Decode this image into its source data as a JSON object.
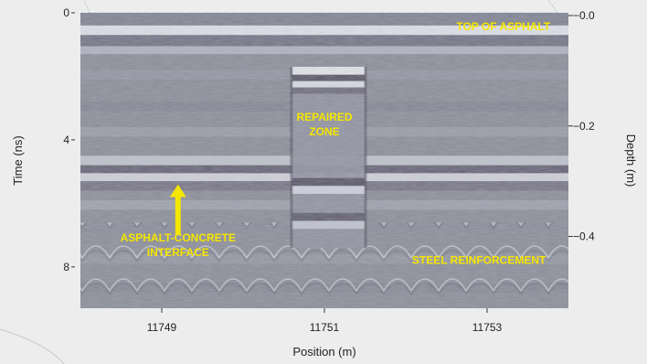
{
  "chart_data": {
    "type": "heatmap",
    "subtype": "ground-penetrating radar radargram (grayscale)",
    "x": {
      "label": "Position (m)",
      "range": [
        11748,
        11754
      ],
      "ticks": [
        11749,
        11751,
        11753
      ]
    },
    "y_left": {
      "label": "Time (ns)",
      "range": [
        0,
        9.3
      ],
      "ticks": [
        0,
        4,
        8
      ],
      "inverted": true
    },
    "y_right": {
      "label": "Depth (m)",
      "range": [
        -0.005,
        0.53
      ],
      "ticks": [
        0.0,
        0.2,
        0.4
      ],
      "tick_labels": [
        "−0.0",
        "−0.2",
        "−0.4"
      ],
      "inverted": true
    },
    "grid": false,
    "legend": "none",
    "colors": {
      "background": "#ededed",
      "annotation": "#f5e600",
      "arrow": "#f5e600",
      "text": "#222222"
    },
    "annotations": [
      {
        "text": [
          "TOP OF ASPHALT"
        ],
        "x": 11753.2,
        "y_ns": 0.55
      },
      {
        "text": [
          "REPAIRED",
          "ZONE"
        ],
        "x": 11751.0,
        "y_ns": 3.4
      },
      {
        "text": [
          "ASPHALT-CONCRETE",
          "INTERFACE"
        ],
        "x": 11749.2,
        "y_ns": 7.2
      },
      {
        "text": [
          "STEEL REINFORCEMENT"
        ],
        "x": 11752.9,
        "y_ns": 7.9
      }
    ],
    "arrow": {
      "x": 11749.2,
      "y_ns_from": 7.0,
      "y_ns_to": 5.4
    },
    "features": {
      "surface_reflection_ns": [
        0.4,
        1.05
      ],
      "interface_reflection_ns": [
        4.5,
        5.6
      ],
      "repaired_zone_x": [
        11750.6,
        11751.5
      ],
      "repaired_zone_top_ns": 1.7,
      "reinforcement_hyperbolae_ns": 6.6
    }
  }
}
